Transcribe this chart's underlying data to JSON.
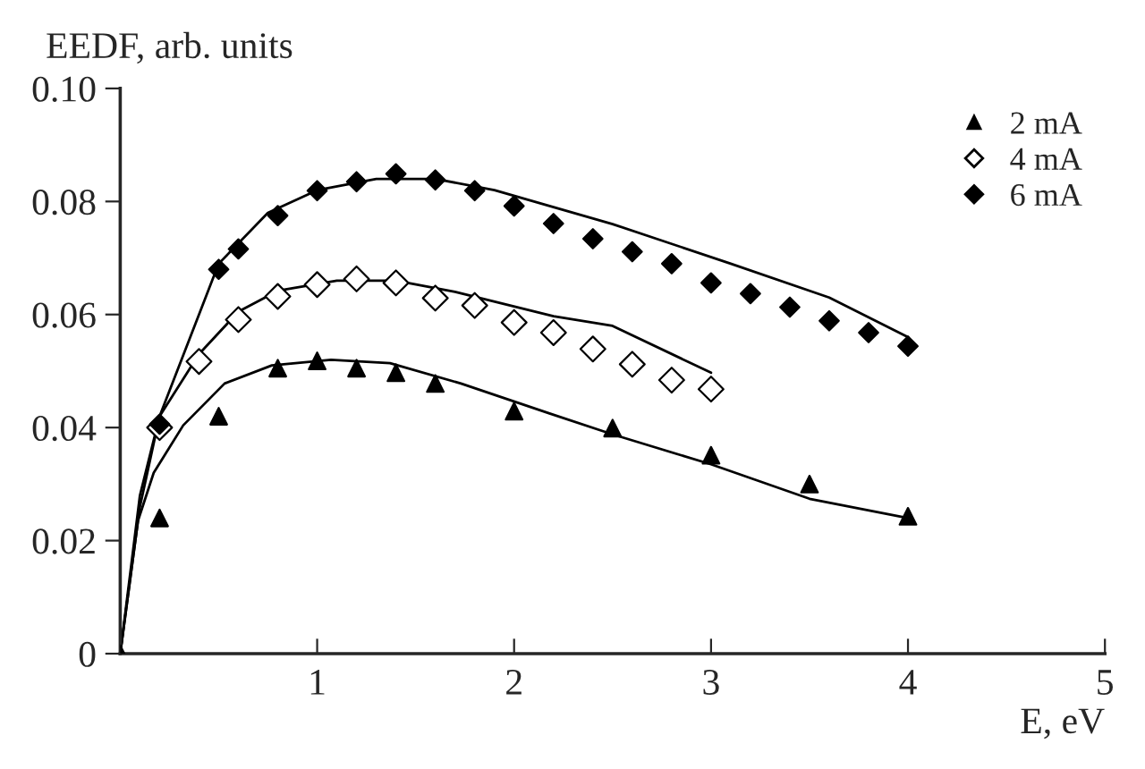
{
  "chart_data": {
    "type": "scatter",
    "xlabel": "E, eV",
    "ylabel": "EEDF, arb. units",
    "xlim": [
      0,
      5
    ],
    "ylim": [
      0,
      0.1
    ],
    "xticks": [
      {
        "value": 0,
        "label": null
      },
      1,
      2,
      3,
      4,
      5
    ],
    "yticks": [
      {
        "value": 0,
        "label": "0"
      },
      {
        "value": 0.02,
        "label": "0.02"
      },
      {
        "value": 0.04,
        "label": "0.04"
      },
      {
        "value": 0.06,
        "label": "0.06"
      },
      {
        "value": 0.08,
        "label": "0.08"
      },
      {
        "value": 0.1,
        "label": "0.10"
      }
    ],
    "grid": false,
    "legend": "top right",
    "series": [
      {
        "name": "2 mA",
        "marker": "triangle",
        "color": "#000000",
        "x": [
          0,
          0.2,
          0.5,
          0.8,
          1.0,
          1.2,
          1.4,
          1.6,
          2.0,
          2.5,
          3.0,
          3.5,
          4.0
        ],
        "values": [
          0,
          0.024,
          0.042,
          0.0505,
          0.0518,
          0.0505,
          0.0497,
          0.0478,
          0.0429,
          0.0399,
          0.0351,
          0.03,
          0.0243
        ]
      },
      {
        "name": "4 mA",
        "marker": "diamond",
        "color": "#ffffff",
        "x": [
          0.2,
          0.4,
          0.6,
          0.8,
          1.0,
          1.2,
          1.4,
          1.6,
          1.8,
          2.0,
          2.2,
          2.4,
          2.6,
          2.8,
          3.0
        ],
        "values": [
          0.04,
          0.0517,
          0.0591,
          0.0632,
          0.0653,
          0.0663,
          0.0656,
          0.0629,
          0.0616,
          0.0586,
          0.0568,
          0.0539,
          0.0512,
          0.0484,
          0.0468
        ]
      },
      {
        "name": "6 mA",
        "marker": "diamond",
        "color": "#000000",
        "x": [
          0.2,
          0.5,
          0.6,
          0.8,
          1.0,
          1.2,
          1.4,
          1.6,
          1.8,
          2.0,
          2.2,
          2.4,
          2.6,
          2.8,
          3.0,
          3.2,
          3.4,
          3.6,
          3.8,
          4.0
        ],
        "values": [
          0.0406,
          0.068,
          0.0716,
          0.0775,
          0.0819,
          0.0835,
          0.0849,
          0.0838,
          0.0819,
          0.0792,
          0.0761,
          0.0734,
          0.0711,
          0.069,
          0.0656,
          0.0637,
          0.0613,
          0.0589,
          0.0568,
          0.0544
        ]
      },
      {
        "type": "line",
        "color": "#000000",
        "x": [
          0,
          0.09,
          0.17,
          0.32,
          0.53,
          0.77,
          1.07,
          1.37,
          1.73,
          2.18,
          2.5,
          3.0,
          3.5,
          4.0
        ],
        "values": [
          0,
          0.0235,
          0.032,
          0.0404,
          0.0478,
          0.051,
          0.052,
          0.0514,
          0.0478,
          0.0425,
          0.0388,
          0.0335,
          0.0274,
          0.024
        ]
      },
      {
        "type": "line",
        "color": "#000000",
        "x": [
          0,
          0.1,
          0.2,
          0.4,
          0.6,
          0.8,
          1.1,
          1.4,
          1.7,
          2.2,
          2.5,
          3.0
        ],
        "values": [
          0,
          0.028,
          0.042,
          0.053,
          0.0605,
          0.0642,
          0.066,
          0.066,
          0.064,
          0.0597,
          0.058,
          0.0497
        ]
      },
      {
        "type": "line",
        "color": "#000000",
        "x": [
          0,
          0.1,
          0.2,
          0.4,
          0.5,
          0.75,
          1.0,
          1.3,
          1.6,
          1.9,
          2.2,
          2.5,
          3.1,
          3.6,
          4.0
        ],
        "values": [
          0,
          0.026,
          0.042,
          0.06,
          0.069,
          0.078,
          0.082,
          0.084,
          0.084,
          0.082,
          0.079,
          0.076,
          0.069,
          0.063,
          0.056
        ]
      }
    ]
  }
}
